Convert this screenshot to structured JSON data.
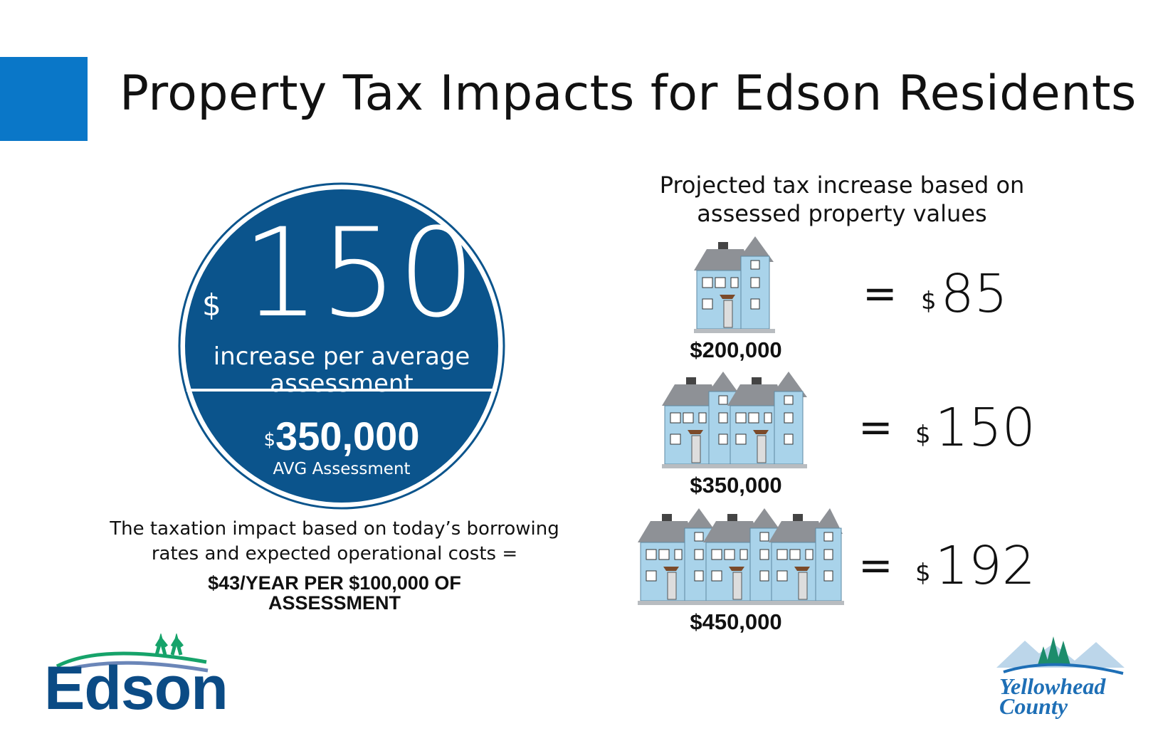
{
  "title": "Property Tax Impacts for Edson Residents",
  "circle": {
    "currency": "$",
    "amount": "150",
    "subtitle": "increase per average assessment",
    "avg_currency": "$",
    "avg_value": "350,000",
    "avg_label": "AVG Assessment"
  },
  "note": "The taxation impact based on today’s borrowing rates and expected operational costs =",
  "rate": "$43/YEAR PER $100,000 OF ASSESSMENT",
  "projection": {
    "heading": "Projected tax increase based on assessed property values",
    "rows": [
      {
        "property_value": "$200,000",
        "equals": "=",
        "currency": "$",
        "increase": "85",
        "houses": 1
      },
      {
        "property_value": "$350,000",
        "equals": "=",
        "currency": "$",
        "increase": "150",
        "houses": 2
      },
      {
        "property_value": "$450,000",
        "equals": "=",
        "currency": "$",
        "increase": "192",
        "houses": 3
      }
    ]
  },
  "logos": {
    "edson": "Edson",
    "yellowhead": "Yellowhead County"
  },
  "colors": {
    "accent": "#0a77c8",
    "circle": "#0b548c",
    "house": "#a9d3ea",
    "roof": "#8e9196"
  }
}
